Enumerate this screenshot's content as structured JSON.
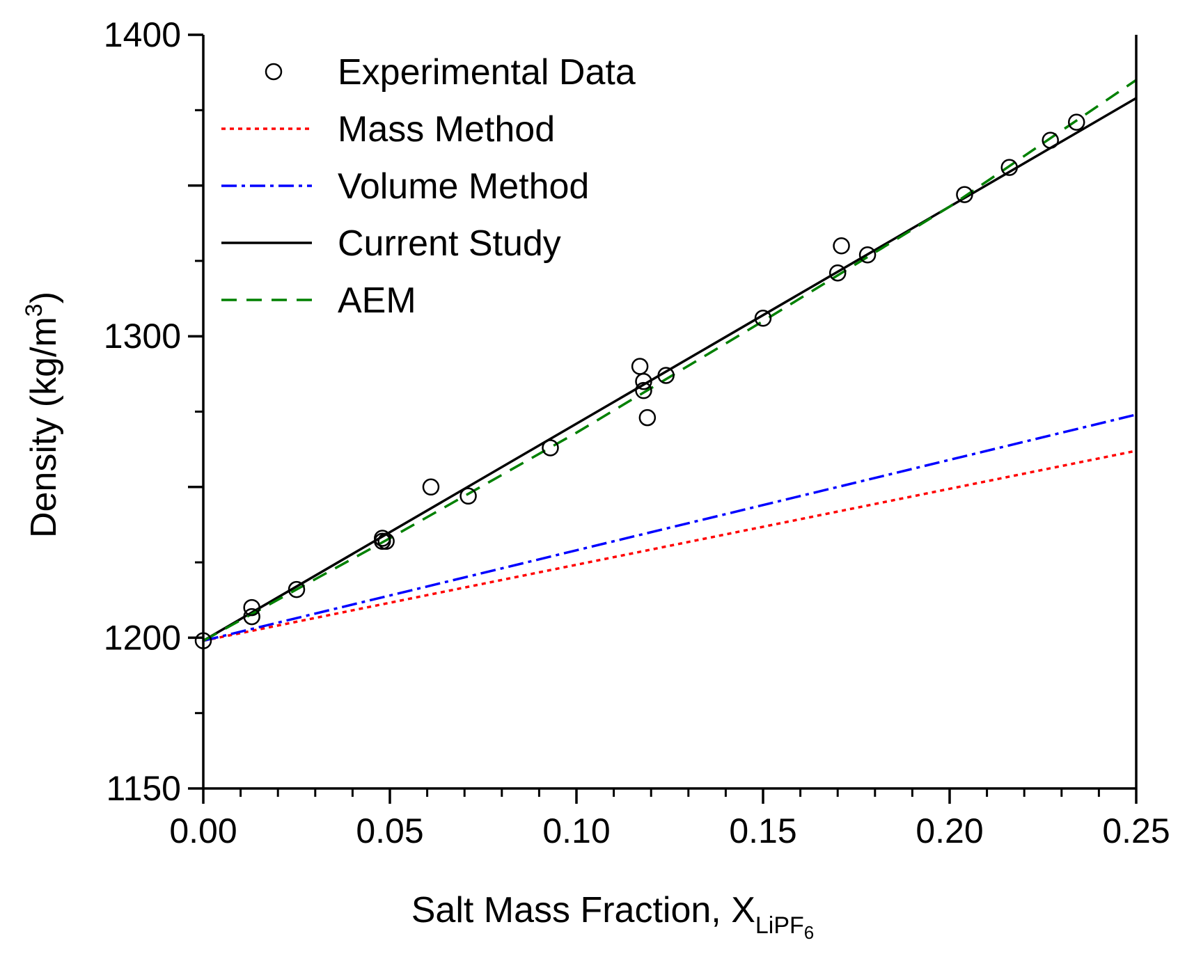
{
  "chart_data": {
    "type": "line",
    "title": "",
    "xlabel": "Salt Mass Fraction, X",
    "xlabel_subscript": "LiPF",
    "xlabel_sub_subscript": "6",
    "ylabel": "Density (kg/m",
    "ylabel_superscript": "3",
    "ylabel_suffix": ")",
    "xlim": [
      0.0,
      0.25
    ],
    "ylim": [
      1150,
      1400
    ],
    "x_ticks": [
      0.0,
      0.05,
      0.1,
      0.15,
      0.2,
      0.25
    ],
    "x_tick_labels": [
      "0.00",
      "0.05",
      "0.10",
      "0.15",
      "0.20",
      "0.25"
    ],
    "y_ticks": [
      1150,
      1200,
      1300,
      1400
    ],
    "y_tick_labels": [
      "1150",
      "1200",
      "1300",
      "1400"
    ],
    "grid": false,
    "legend_position": "top-left",
    "legend": [
      {
        "label": "Experimental Data",
        "style": "circle",
        "color": "#000000"
      },
      {
        "label": "Mass Method",
        "style": "dotted",
        "color": "#ff0000"
      },
      {
        "label": "Volume Method",
        "style": "dashdot",
        "color": "#0000ff"
      },
      {
        "label": "Current Study",
        "style": "solid",
        "color": "#000000"
      },
      {
        "label": "AEM",
        "style": "dashed",
        "color": "#008000"
      }
    ],
    "scatter": {
      "name": "Experimental Data",
      "x": [
        0.0,
        0.013,
        0.013,
        0.025,
        0.048,
        0.049,
        0.048,
        0.061,
        0.071,
        0.093,
        0.117,
        0.118,
        0.118,
        0.119,
        0.124,
        0.15,
        0.17,
        0.171,
        0.178,
        0.204,
        0.216,
        0.227,
        0.234
      ],
      "y": [
        1199,
        1210,
        1207,
        1216,
        1232,
        1232,
        1233,
        1250,
        1247,
        1263,
        1290,
        1285,
        1282,
        1273,
        1287,
        1306,
        1321,
        1330,
        1327,
        1347,
        1356,
        1365,
        1371
      ]
    },
    "series": [
      {
        "name": "Mass Method",
        "style": "dotted",
        "color": "#ff0000",
        "x": [
          0.0,
          0.25
        ],
        "y": [
          1199,
          1262
        ]
      },
      {
        "name": "Volume Method",
        "style": "dashdot",
        "color": "#0000ff",
        "x": [
          0.0,
          0.25
        ],
        "y": [
          1199,
          1274
        ]
      },
      {
        "name": "Current Study",
        "style": "solid",
        "color": "#000000",
        "x": [
          0.0,
          0.25
        ],
        "y": [
          1199,
          1379
        ]
      },
      {
        "name": "AEM",
        "style": "dashed",
        "color": "#008000",
        "x": [
          0.0,
          0.05,
          0.1,
          0.15,
          0.2,
          0.25
        ],
        "y": [
          1199,
          1233,
          1268,
          1305,
          1343,
          1385
        ]
      }
    ]
  }
}
